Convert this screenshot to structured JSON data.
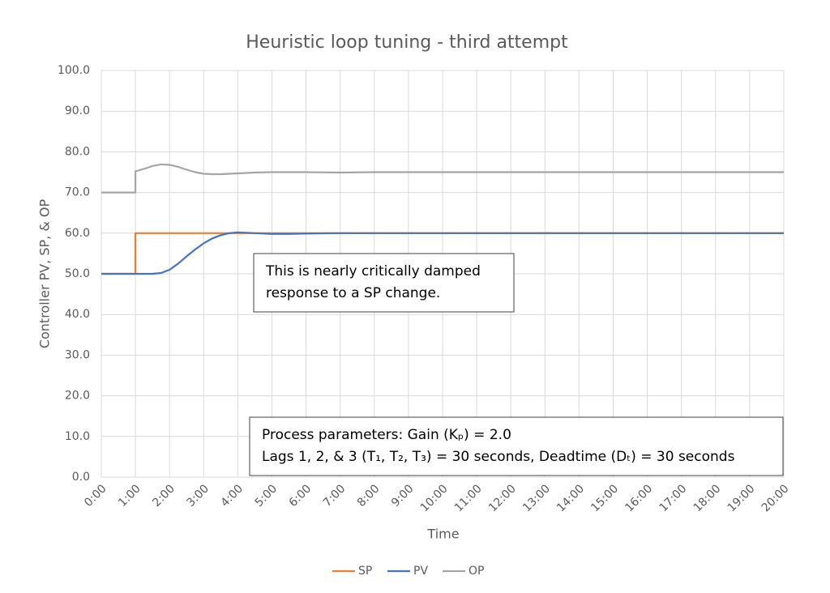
{
  "chart_data": {
    "type": "line",
    "title": "Heuristic loop tuning - third attempt",
    "x_label": "Time",
    "y_label": "Controller PV, SP, & OP",
    "x": [
      0,
      1,
      1,
      1.25,
      1.5,
      1.75,
      2,
      2.25,
      2.5,
      2.75,
      3,
      3.25,
      3.5,
      3.75,
      4,
      4.5,
      5,
      5.5,
      6,
      7,
      8,
      9,
      10,
      20
    ],
    "series": [
      {
        "name": "SP",
        "color": "#ed7d31",
        "values": [
          50,
          50,
          60,
          60,
          60,
          60,
          60,
          60,
          60,
          60,
          60,
          60,
          60,
          60,
          60,
          60,
          60,
          60,
          60,
          60,
          60,
          60,
          60,
          60
        ]
      },
      {
        "name": "PV",
        "color": "#4472c4",
        "values": [
          50,
          50,
          50,
          50,
          50,
          50.2,
          51,
          52.5,
          54.3,
          56,
          57.5,
          58.7,
          59.5,
          60,
          60.2,
          60,
          59.8,
          59.8,
          59.9,
          60,
          60,
          60,
          60,
          60
        ]
      },
      {
        "name": "OP",
        "color": "#a5a5a5",
        "values": [
          70,
          70,
          75.2,
          75.8,
          76.5,
          76.9,
          76.8,
          76.3,
          75.6,
          75,
          74.6,
          74.5,
          74.5,
          74.6,
          74.7,
          74.9,
          75,
          75,
          75,
          74.9,
          75,
          75,
          75,
          75
        ]
      }
    ],
    "xlim": [
      0,
      20
    ],
    "xticks": [
      {
        "value": 0,
        "label": "0:00"
      },
      {
        "value": 1,
        "label": "1:00"
      },
      {
        "value": 2,
        "label": "2:00"
      },
      {
        "value": 3,
        "label": "3:00"
      },
      {
        "value": 4,
        "label": "4:00"
      },
      {
        "value": 5,
        "label": "5:00"
      },
      {
        "value": 6,
        "label": "6:00"
      },
      {
        "value": 7,
        "label": "7:00"
      },
      {
        "value": 8,
        "label": "8:00"
      },
      {
        "value": 9,
        "label": "9:00"
      },
      {
        "value": 10,
        "label": "10:00"
      },
      {
        "value": 11,
        "label": "11:00"
      },
      {
        "value": 12,
        "label": "12:00"
      },
      {
        "value": 13,
        "label": "13:00"
      },
      {
        "value": 14,
        "label": "14:00"
      },
      {
        "value": 15,
        "label": "15:00"
      },
      {
        "value": 16,
        "label": "16:00"
      },
      {
        "value": 17,
        "label": "17:00"
      },
      {
        "value": 18,
        "label": "18:00"
      },
      {
        "value": 19,
        "label": "19:00"
      },
      {
        "value": 20,
        "label": "20:00"
      }
    ],
    "ylim": [
      0,
      100
    ],
    "yticks": [
      {
        "value": 0,
        "label": "0.0"
      },
      {
        "value": 10,
        "label": "10.0"
      },
      {
        "value": 20,
        "label": "20.0"
      },
      {
        "value": 30,
        "label": "30.0"
      },
      {
        "value": 40,
        "label": "40.0"
      },
      {
        "value": 50,
        "label": "50.0"
      },
      {
        "value": 60,
        "label": "60.0"
      },
      {
        "value": 70,
        "label": "70.0"
      },
      {
        "value": 80,
        "label": "80.0"
      },
      {
        "value": 90,
        "label": "90.0"
      },
      {
        "value": 100,
        "label": "100.0"
      }
    ],
    "grid": true,
    "legend": "bottom",
    "annotations": [
      {
        "lines": [
          "This is nearly critically damped",
          "response to a SP change."
        ]
      },
      {
        "lines": [
          "Process parameters:  Gain (Kₚ) = 2.0",
          "Lags 1, 2, & 3 (T₁, T₂, T₃) = 30 seconds, Deadtime (Dₜ) = 30 seconds"
        ]
      }
    ]
  }
}
